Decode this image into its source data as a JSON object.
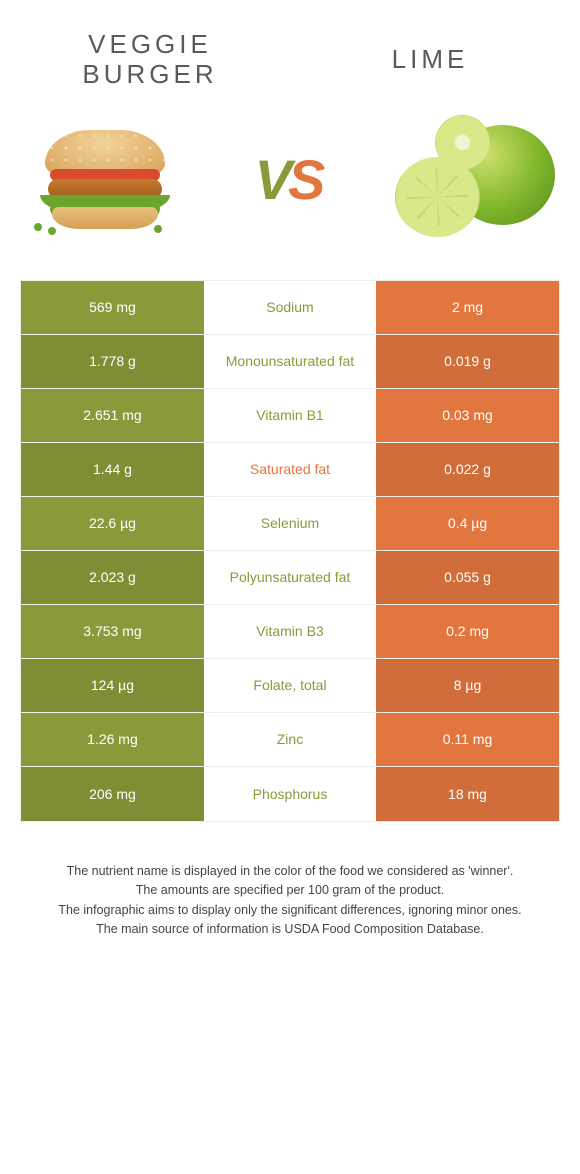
{
  "colors": {
    "left_bg": "#8a9a3a",
    "right_bg": "#e2763f",
    "row_alt_darken": 0.92
  },
  "header": {
    "left_title": "VEGGIE BURGER",
    "right_title": "LIME",
    "vs_v": "V",
    "vs_s": "S"
  },
  "rows": [
    {
      "left": "569 mg",
      "label": "Sodium",
      "right": "2 mg",
      "winner": "left"
    },
    {
      "left": "1.778 g",
      "label": "Monounsaturated fat",
      "right": "0.019 g",
      "winner": "left"
    },
    {
      "left": "2.651 mg",
      "label": "Vitamin B1",
      "right": "0.03 mg",
      "winner": "left"
    },
    {
      "left": "1.44 g",
      "label": "Saturated fat",
      "right": "0.022 g",
      "winner": "right"
    },
    {
      "left": "22.6 µg",
      "label": "Selenium",
      "right": "0.4 µg",
      "winner": "left"
    },
    {
      "left": "2.023 g",
      "label": "Polyunsaturated fat",
      "right": "0.055 g",
      "winner": "left"
    },
    {
      "left": "3.753 mg",
      "label": "Vitamin B3",
      "right": "0.2 mg",
      "winner": "left"
    },
    {
      "left": "124 µg",
      "label": "Folate, total",
      "right": "8 µg",
      "winner": "left"
    },
    {
      "left": "1.26 mg",
      "label": "Zinc",
      "right": "0.11 mg",
      "winner": "left"
    },
    {
      "left": "206 mg",
      "label": "Phosphorus",
      "right": "18 mg",
      "winner": "left"
    }
  ],
  "footnotes": [
    "The nutrient name is displayed in the color of the food we considered as 'winner'.",
    "The amounts are specified per 100 gram of the product.",
    "The infographic aims to display only the significant differences, ignoring minor ones.",
    "The main source of information is USDA Food Composition Database."
  ]
}
